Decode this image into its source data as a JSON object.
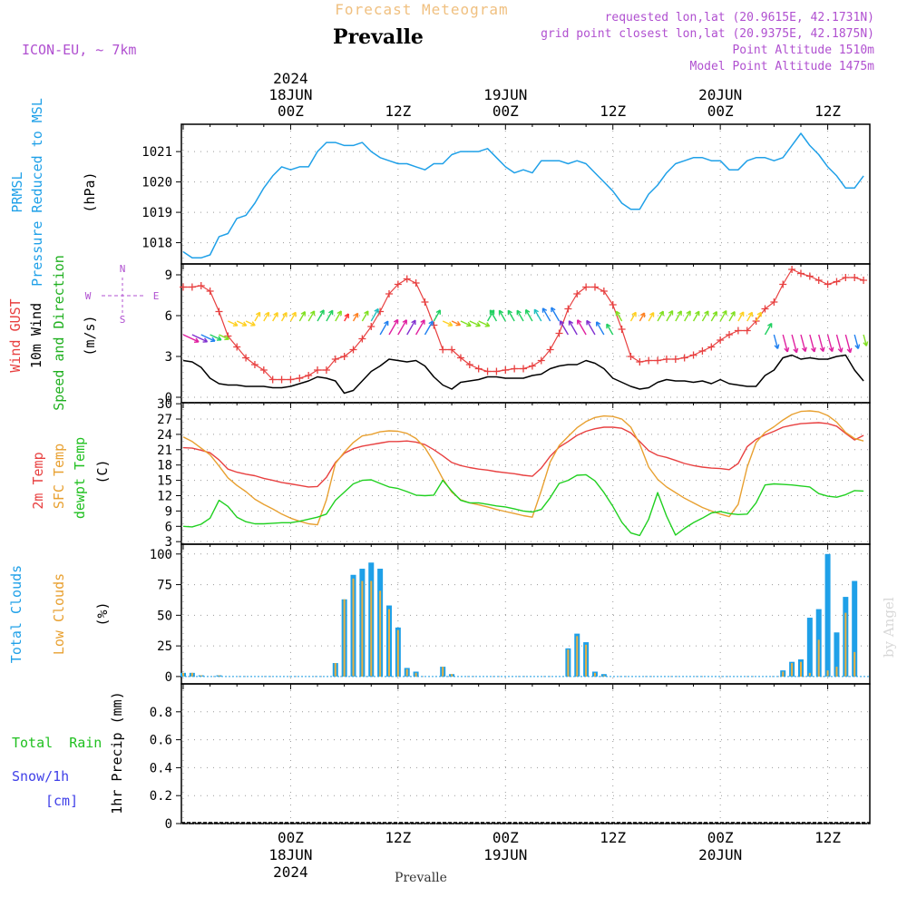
{
  "header": {
    "title": "Forecast Meteogram",
    "location": "Prevalle",
    "model": "ICON-EU, ~ 7km",
    "requested": "requested lon,lat (20.9615E, 42.1731N)",
    "gridpoint": "grid point closest lon,lat (20.9375E, 42.1875N)",
    "altitude": "Point Altitude 1510m",
    "model_altitude": "Model Point Altitude 1475m",
    "footer_location": "Prevalle",
    "watermark": "by Angel"
  },
  "time_axis": {
    "top_year": "2024",
    "labels": [
      {
        "hour": 12,
        "line1": "18JUN",
        "line2": "00Z",
        "year": "2024"
      },
      {
        "hour": 24,
        "line1": "",
        "line2": "12Z"
      },
      {
        "hour": 36,
        "line1": "19JUN",
        "line2": "00Z"
      },
      {
        "hour": 48,
        "line1": "",
        "line2": "12Z"
      },
      {
        "hour": 60,
        "line1": "20JUN",
        "line2": "00Z"
      },
      {
        "hour": 72,
        "line1": "",
        "line2": "12Z"
      }
    ],
    "bottom_labels": [
      {
        "hour": 12,
        "line1": "00Z",
        "line2": "18JUN",
        "line3": "2024"
      },
      {
        "hour": 24,
        "line1": "12Z"
      },
      {
        "hour": 36,
        "line1": "00Z",
        "line2": "19JUN"
      },
      {
        "hour": 48,
        "line1": "12Z"
      },
      {
        "hour": 60,
        "line1": "00Z",
        "line2": "20JUN"
      },
      {
        "hour": 72,
        "line1": "12Z"
      }
    ]
  },
  "panels": {
    "pressure": {
      "label1": "PRMSL",
      "label2": "Pressure Reduced to MSL",
      "unit": "(hPa)"
    },
    "wind": {
      "label_gust": "Wind GUST",
      "label_10m": "10m Wind",
      "label_dir": "Speed and Direction",
      "unit": "(m/s)",
      "compass_n": "N",
      "compass_s": "S",
      "compass_w": "W",
      "compass_e": "E"
    },
    "temp": {
      "label_2m": "2m Temp",
      "label_sfc": "SFC Temp",
      "label_dew": "dewpt Temp",
      "unit": "(C)"
    },
    "clouds": {
      "label_total": "Total Clouds",
      "label_low": "Low Clouds",
      "unit": "(%)"
    },
    "precip": {
      "label_rain": "Total  Rain",
      "label_snow": "Snow/1h",
      "label_cm": "[cm]",
      "label_axis": "1hr Precip (mm)"
    }
  },
  "colors": {
    "pressure": "#1fa0e8",
    "gust": "#e84040",
    "wind": "#000000",
    "t2m": "#e84040",
    "sfc": "#e8a030",
    "dew": "#20d020",
    "total_cloud": "#1fa0e8",
    "low_cloud": "#e8b040",
    "rain": "#20c020",
    "snow": "#4040e8",
    "title": "#f0c080",
    "info": "#b050d0"
  },
  "chart_data": [
    {
      "type": "line",
      "name": "pressure",
      "x": [
        0,
        1,
        2,
        3,
        4,
        5,
        6,
        7,
        8,
        9,
        10,
        11,
        12,
        13,
        14,
        15,
        16,
        17,
        18,
        19,
        20,
        21,
        22,
        23,
        24,
        25,
        26,
        27,
        28,
        29,
        30,
        31,
        32,
        33,
        34,
        35,
        36,
        37,
        38,
        39,
        40,
        41,
        42,
        43,
        44,
        45,
        46,
        47,
        48,
        49,
        50,
        51,
        52,
        53,
        54,
        55,
        56,
        57,
        58,
        59,
        60,
        61,
        62,
        63,
        64,
        65,
        66,
        67,
        68,
        69,
        70,
        71,
        72,
        73,
        74,
        75,
        76
      ],
      "series": [
        {
          "values": [
            1017.7,
            1017.5,
            1017.5,
            1017.6,
            1018.2,
            1018.3,
            1018.8,
            1018.9,
            1019.3,
            1019.8,
            1020.2,
            1020.5,
            1020.4,
            1020.5,
            1020.5,
            1021.0,
            1021.3,
            1021.3,
            1021.2,
            1021.2,
            1021.3,
            1021.0,
            1020.8,
            1020.7,
            1020.6,
            1020.6,
            1020.5,
            1020.4,
            1020.6,
            1020.6,
            1020.9,
            1021.0,
            1021.0,
            1021.0,
            1021.1,
            1020.8,
            1020.5,
            1020.3,
            1020.4,
            1020.3,
            1020.7,
            1020.7,
            1020.7,
            1020.6,
            1020.7,
            1020.6,
            1020.3,
            1020.0,
            1019.7,
            1019.3,
            1019.1,
            1019.1,
            1019.6,
            1019.9,
            1020.3,
            1020.6,
            1020.7,
            1020.8,
            1020.8,
            1020.7,
            1020.7,
            1020.4,
            1020.4,
            1020.7,
            1020.8,
            1020.8,
            1020.7,
            1020.8,
            1021.2,
            1021.6,
            1021.2,
            1020.9,
            1020.5,
            1020.2,
            1019.8,
            1019.8,
            1020.2
          ]
        }
      ],
      "ylim": [
        1017.3,
        1021.9
      ],
      "yticks": [
        1018,
        1019,
        1020,
        1021
      ]
    },
    {
      "type": "line",
      "name": "wind",
      "x": [
        0,
        1,
        2,
        3,
        4,
        5,
        6,
        7,
        8,
        9,
        10,
        11,
        12,
        13,
        14,
        15,
        16,
        17,
        18,
        19,
        20,
        21,
        22,
        23,
        24,
        25,
        26,
        27,
        28,
        29,
        30,
        31,
        32,
        33,
        34,
        35,
        36,
        37,
        38,
        39,
        40,
        41,
        42,
        43,
        44,
        45,
        46,
        47,
        48,
        49,
        50,
        51,
        52,
        53,
        54,
        55,
        56,
        57,
        58,
        59,
        60,
        61,
        62,
        63,
        64,
        65,
        66,
        67,
        68,
        69,
        70,
        71,
        72,
        73,
        74,
        75,
        76
      ],
      "series": [
        {
          "name": "gust",
          "values": [
            8.1,
            8.1,
            8.2,
            7.8,
            6.3,
            4.5,
            3.7,
            2.9,
            2.4,
            2.0,
            1.3,
            1.3,
            1.3,
            1.4,
            1.6,
            2.0,
            2.0,
            2.8,
            3.0,
            3.5,
            4.3,
            5.2,
            6.3,
            7.6,
            8.3,
            8.7,
            8.4,
            7.0,
            5.3,
            3.5,
            3.5,
            2.9,
            2.4,
            2.1,
            1.9,
            1.9,
            2.0,
            2.1,
            2.1,
            2.3,
            2.7,
            3.5,
            4.7,
            6.5,
            7.6,
            8.1,
            8.1,
            7.8,
            6.8,
            5.0,
            3.0,
            2.6,
            2.7,
            2.7,
            2.8,
            2.8,
            2.9,
            3.1,
            3.4,
            3.7,
            4.2,
            4.6,
            4.9,
            4.9,
            5.6,
            6.5,
            7.0,
            8.3,
            9.4,
            9.1,
            8.9,
            8.6,
            8.3,
            8.5,
            8.8,
            8.8,
            8.6
          ]
        },
        {
          "name": "10m",
          "values": [
            2.7,
            2.6,
            2.2,
            1.4,
            1.0,
            0.9,
            0.9,
            0.8,
            0.8,
            0.8,
            0.7,
            0.7,
            0.8,
            1.0,
            1.2,
            1.5,
            1.4,
            1.2,
            0.3,
            0.5,
            1.2,
            1.9,
            2.3,
            2.8,
            2.7,
            2.6,
            2.7,
            2.3,
            1.5,
            0.9,
            0.6,
            1.1,
            1.2,
            1.3,
            1.5,
            1.5,
            1.4,
            1.4,
            1.4,
            1.6,
            1.7,
            2.1,
            2.3,
            2.4,
            2.4,
            2.7,
            2.5,
            2.1,
            1.4,
            1.1,
            0.8,
            0.6,
            0.7,
            1.1,
            1.3,
            1.2,
            1.2,
            1.1,
            1.2,
            1.0,
            1.3,
            1.0,
            0.9,
            0.8,
            0.8,
            1.6,
            2.0,
            2.9,
            3.1,
            2.8,
            2.9,
            2.8,
            2.8,
            3.0,
            3.1,
            2.0,
            1.2
          ]
        }
      ],
      "ylim": [
        -0.4,
        9.8
      ],
      "yticks": [
        0,
        3,
        6,
        9
      ]
    },
    {
      "type": "line",
      "name": "temperature",
      "x": [
        0,
        1,
        2,
        3,
        4,
        5,
        6,
        7,
        8,
        9,
        10,
        11,
        12,
        13,
        14,
        15,
        16,
        17,
        18,
        19,
        20,
        21,
        22,
        23,
        24,
        25,
        26,
        27,
        28,
        29,
        30,
        31,
        32,
        33,
        34,
        35,
        36,
        37,
        38,
        39,
        40,
        41,
        42,
        43,
        44,
        45,
        46,
        47,
        48,
        49,
        50,
        51,
        52,
        53,
        54,
        55,
        56,
        57,
        58,
        59,
        60,
        61,
        62,
        63,
        64,
        65,
        66,
        67,
        68,
        69,
        70,
        71,
        72,
        73,
        74,
        75,
        76
      ],
      "series": [
        {
          "name": "2m",
          "values": [
            21.4,
            21.3,
            20.9,
            20.4,
            19.0,
            17.2,
            16.6,
            16.2,
            15.9,
            15.4,
            15.0,
            14.6,
            14.3,
            14.0,
            13.7,
            13.8,
            15.6,
            18.5,
            20.3,
            21.2,
            21.7,
            22.0,
            22.3,
            22.6,
            22.6,
            22.7,
            22.5,
            22.0,
            21.0,
            19.8,
            18.5,
            17.9,
            17.5,
            17.2,
            17.0,
            16.7,
            16.5,
            16.3,
            16.0,
            15.8,
            17.4,
            19.7,
            21.5,
            22.6,
            23.8,
            24.6,
            25.1,
            25.4,
            25.4,
            25.2,
            24.3,
            22.6,
            20.8,
            19.9,
            19.5,
            18.9,
            18.3,
            17.9,
            17.6,
            17.4,
            17.3,
            17.1,
            18.3,
            21.6,
            23.0,
            23.9,
            24.6,
            25.4,
            25.8,
            26.1,
            26.2,
            26.3,
            26.1,
            25.6,
            24.2,
            22.9,
            23.8
          ]
        },
        {
          "name": "sfc",
          "values": [
            23.5,
            22.6,
            21.3,
            20.0,
            17.8,
            15.5,
            14.0,
            12.8,
            11.3,
            10.3,
            9.4,
            8.4,
            7.6,
            7.0,
            6.5,
            6.3,
            11.2,
            18.3,
            20.5,
            22.4,
            23.7,
            24.0,
            24.5,
            24.7,
            24.6,
            24.2,
            23.2,
            21.4,
            18.6,
            15.3,
            12.7,
            11.2,
            10.6,
            10.2,
            9.8,
            9.3,
            8.9,
            8.5,
            8.1,
            7.8,
            13.0,
            18.6,
            21.8,
            23.6,
            25.3,
            26.5,
            27.3,
            27.6,
            27.5,
            27.0,
            25.4,
            22.1,
            17.6,
            15.2,
            13.7,
            12.6,
            11.5,
            10.6,
            9.7,
            9.0,
            8.4,
            7.9,
            10.3,
            17.6,
            22.4,
            24.4,
            25.5,
            26.8,
            27.9,
            28.5,
            28.6,
            28.4,
            27.7,
            26.4,
            24.4,
            23.2,
            22.7
          ]
        },
        {
          "name": "dew",
          "values": [
            6.0,
            5.9,
            6.4,
            7.6,
            11.1,
            9.9,
            7.8,
            6.9,
            6.5,
            6.5,
            6.6,
            6.7,
            6.7,
            7.0,
            7.4,
            7.8,
            8.4,
            11.1,
            12.7,
            14.3,
            15.0,
            15.1,
            14.4,
            13.7,
            13.4,
            12.8,
            12.1,
            12.0,
            12.1,
            15.0,
            12.9,
            11.1,
            10.6,
            10.6,
            10.3,
            10.0,
            9.8,
            9.4,
            9.0,
            8.8,
            9.3,
            11.6,
            14.4,
            15.0,
            16.0,
            16.1,
            14.9,
            12.6,
            9.9,
            6.8,
            4.7,
            4.2,
            7.4,
            12.6,
            8.0,
            4.3,
            5.6,
            6.7,
            7.6,
            8.6,
            8.9,
            8.5,
            8.3,
            8.4,
            10.6,
            14.1,
            14.3,
            14.2,
            14.1,
            13.9,
            13.7,
            12.4,
            11.9,
            11.7,
            12.2,
            13.0,
            12.9
          ]
        }
      ],
      "ylim": [
        2.5,
        30.2
      ],
      "yticks": [
        3,
        6,
        9,
        12,
        15,
        18,
        21,
        24,
        27,
        30
      ]
    },
    {
      "type": "bar",
      "name": "clouds",
      "x": [
        0,
        1,
        2,
        3,
        4,
        5,
        6,
        7,
        8,
        9,
        10,
        11,
        12,
        13,
        14,
        15,
        16,
        17,
        18,
        19,
        20,
        21,
        22,
        23,
        24,
        25,
        26,
        27,
        28,
        29,
        30,
        31,
        32,
        33,
        34,
        35,
        36,
        37,
        38,
        39,
        40,
        41,
        42,
        43,
        44,
        45,
        46,
        47,
        48,
        49,
        50,
        51,
        52,
        53,
        54,
        55,
        56,
        57,
        58,
        59,
        60,
        61,
        62,
        63,
        64,
        65,
        66,
        67,
        68,
        69,
        70,
        71,
        72,
        73,
        74,
        75,
        76
      ],
      "series": [
        {
          "name": "total",
          "values": [
            3,
            3,
            1,
            0,
            1,
            0,
            0,
            0,
            0,
            0,
            0,
            0,
            0,
            0,
            0,
            0,
            0,
            11,
            63,
            83,
            88,
            93,
            88,
            58,
            40,
            7,
            4,
            0,
            0,
            8,
            2,
            0,
            0,
            0,
            0,
            0,
            0,
            0,
            0,
            0,
            0,
            0,
            0,
            23,
            35,
            28,
            4,
            2,
            0,
            0,
            0,
            0,
            0,
            0,
            0,
            0,
            0,
            0,
            0,
            0,
            0,
            0,
            0,
            0,
            0,
            0,
            0,
            5,
            12,
            14,
            48,
            55,
            100,
            36,
            65,
            78,
            0
          ]
        },
        {
          "name": "low",
          "values": [
            3,
            3,
            1,
            0,
            1,
            0,
            0,
            0,
            0,
            0,
            0,
            0,
            0,
            0,
            0,
            0,
            0,
            11,
            63,
            80,
            78,
            78,
            70,
            55,
            38,
            6,
            3,
            0,
            0,
            8,
            2,
            0,
            0,
            0,
            0,
            0,
            0,
            0,
            0,
            0,
            0,
            0,
            0,
            22,
            33,
            26,
            3,
            1,
            0,
            0,
            0,
            0,
            0,
            0,
            0,
            0,
            0,
            0,
            0,
            0,
            0,
            0,
            0,
            0,
            0,
            0,
            0,
            4,
            11,
            12,
            3,
            30,
            5,
            8,
            52,
            20,
            0
          ]
        }
      ],
      "ylim": [
        -6,
        108
      ],
      "yticks": [
        0,
        25,
        50,
        75,
        100
      ]
    },
    {
      "type": "bar",
      "name": "precip",
      "categories": [],
      "series": [
        {
          "name": "rain",
          "values": []
        },
        {
          "name": "snow",
          "values": []
        }
      ],
      "ylim": [
        0,
        1.0
      ],
      "yticks": [
        0,
        0.2,
        0.4,
        0.6,
        0.8
      ]
    }
  ]
}
